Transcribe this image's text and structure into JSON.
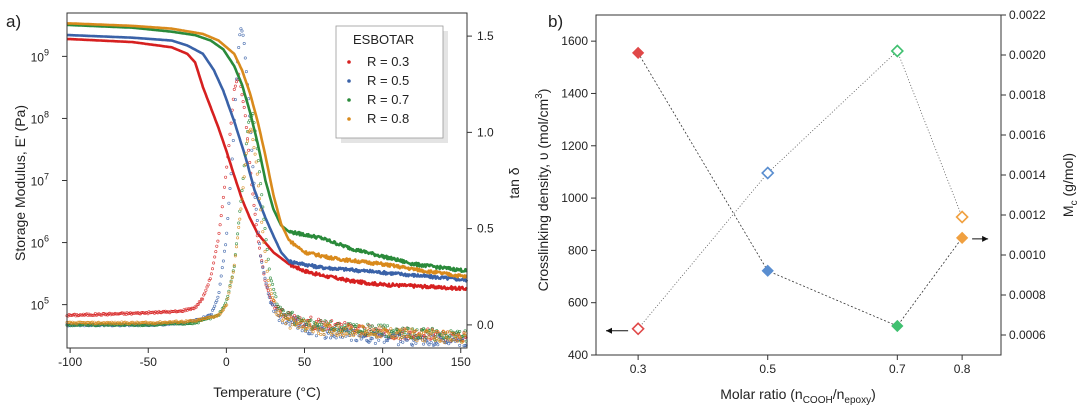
{
  "chart_data": [
    {
      "panel": "a)",
      "type": "line",
      "xlabel": "Temperature (°C)",
      "ylabel": "Storage Modulus, E' (Pa)",
      "y2label": "tan δ",
      "xlim": [
        -102,
        154
      ],
      "ylim_log": [
        20000,
        5000000000
      ],
      "y2lim": [
        -0.12,
        1.62
      ],
      "xscale": "linear",
      "yscale": "log",
      "x_ticks": [
        "-100",
        "-50",
        "0",
        "50",
        "100",
        "150"
      ],
      "y_ticks": [
        {
          "base": "10",
          "exp": "5"
        },
        {
          "base": "10",
          "exp": "6"
        },
        {
          "base": "10",
          "exp": "7"
        },
        {
          "base": "10",
          "exp": "8"
        },
        {
          "base": "10",
          "exp": "9"
        }
      ],
      "y2_ticks": [
        "0.0",
        "0.5",
        "1.0",
        "1.5"
      ],
      "legend": {
        "title": "ESBOTAR",
        "position": "top-right"
      },
      "series": [
        {
          "name": "R = 0.3",
          "color": "#d62020",
          "modulus": [
            [
              -100,
              1900000000.0
            ],
            [
              -60,
              1700000000.0
            ],
            [
              -35,
              1400000000.0
            ],
            [
              -25,
              1100000000.0
            ],
            [
              -20,
              800000000.0
            ],
            [
              -15,
              320000000.0
            ],
            [
              -10,
              150000000.0
            ],
            [
              -5,
              70000000.0
            ],
            [
              0,
              30000000.0
            ],
            [
              5,
              12000000.0
            ],
            [
              10,
              5000000.0
            ],
            [
              15,
              2500000.0
            ],
            [
              20,
              1400000.0
            ],
            [
              30,
              700000.0
            ],
            [
              40,
              450000.0
            ],
            [
              50,
              350000.0
            ],
            [
              60,
              300000.0
            ],
            [
              80,
              240000.0
            ],
            [
              100,
              210000.0
            ],
            [
              120,
              200000.0
            ],
            [
              154,
              180000.0
            ]
          ],
          "tan_delta": [
            [
              -100,
              0.05
            ],
            [
              -60,
              0.06
            ],
            [
              -30,
              0.07
            ],
            [
              -20,
              0.09
            ],
            [
              -15,
              0.14
            ],
            [
              -10,
              0.25
            ],
            [
              -5,
              0.45
            ],
            [
              0,
              0.8
            ],
            [
              5,
              1.22
            ],
            [
              8,
              1.3
            ],
            [
              12,
              1.1
            ],
            [
              16,
              0.75
            ],
            [
              20,
              0.45
            ],
            [
              25,
              0.22
            ],
            [
              30,
              0.1
            ],
            [
              40,
              0.04
            ],
            [
              60,
              0.0
            ],
            [
              100,
              -0.04
            ],
            [
              154,
              -0.06
            ]
          ]
        },
        {
          "name": "R = 0.5",
          "color": "#3a62a8",
          "modulus": [
            [
              -100,
              2200000000.0
            ],
            [
              -60,
              2000000000.0
            ],
            [
              -35,
              1800000000.0
            ],
            [
              -25,
              1500000000.0
            ],
            [
              -15,
              1100000000.0
            ],
            [
              -8,
              600000000.0
            ],
            [
              -2,
              280000000.0
            ],
            [
              5,
              90000000.0
            ],
            [
              12,
              25000000.0
            ],
            [
              18,
              7000000.0
            ],
            [
              25,
              2500000.0
            ],
            [
              30,
              1300000.0
            ],
            [
              35,
              700000.0
            ],
            [
              40,
              500000.0
            ],
            [
              60,
              400000.0
            ],
            [
              100,
              330000.0
            ],
            [
              154,
              250000.0
            ]
          ],
          "tan_delta": [
            [
              -100,
              0.0
            ],
            [
              -50,
              0.0
            ],
            [
              -25,
              0.01
            ],
            [
              -10,
              0.05
            ],
            [
              -5,
              0.15
            ],
            [
              0,
              0.45
            ],
            [
              4,
              0.9
            ],
            [
              7,
              1.35
            ],
            [
              9,
              1.55
            ],
            [
              11,
              1.5
            ],
            [
              14,
              1.2
            ],
            [
              18,
              0.7
            ],
            [
              22,
              0.35
            ],
            [
              28,
              0.12
            ],
            [
              35,
              0.03
            ],
            [
              60,
              -0.04
            ],
            [
              100,
              -0.07
            ],
            [
              154,
              -0.09
            ]
          ]
        },
        {
          "name": "R = 0.7",
          "color": "#2a8a3a",
          "modulus": [
            [
              -100,
              3200000000.0
            ],
            [
              -60,
              2900000000.0
            ],
            [
              -35,
              2500000000.0
            ],
            [
              -20,
              2200000000.0
            ],
            [
              -10,
              1800000000.0
            ],
            [
              -2,
              1300000000.0
            ],
            [
              5,
              700000000.0
            ],
            [
              10,
              350000000.0
            ],
            [
              15,
              130000000.0
            ],
            [
              20,
              40000000.0
            ],
            [
              25,
              10000000.0
            ],
            [
              30,
              3500000.0
            ],
            [
              35,
              1900000.0
            ],
            [
              40,
              1500000.0
            ],
            [
              60,
              1200000.0
            ],
            [
              80,
              800000.0
            ],
            [
              100,
              600000.0
            ],
            [
              120,
              450000.0
            ],
            [
              154,
              350000.0
            ]
          ],
          "tan_delta": [
            [
              -100,
              0.0
            ],
            [
              -50,
              0.0
            ],
            [
              -20,
              0.01
            ],
            [
              -5,
              0.05
            ],
            [
              0,
              0.12
            ],
            [
              5,
              0.3
            ],
            [
              10,
              0.7
            ],
            [
              14,
              1.05
            ],
            [
              17,
              1.1
            ],
            [
              20,
              0.9
            ],
            [
              24,
              0.55
            ],
            [
              28,
              0.25
            ],
            [
              35,
              0.07
            ],
            [
              50,
              0.0
            ],
            [
              100,
              -0.03
            ],
            [
              154,
              -0.06
            ]
          ]
        },
        {
          "name": "R = 0.8",
          "color": "#d98a1c",
          "modulus": [
            [
              -100,
              3400000000.0
            ],
            [
              -60,
              3100000000.0
            ],
            [
              -35,
              2800000000.0
            ],
            [
              -15,
              2300000000.0
            ],
            [
              -5,
              1800000000.0
            ],
            [
              5,
              1100000000.0
            ],
            [
              10,
              600000000.0
            ],
            [
              15,
              260000000.0
            ],
            [
              20,
              90000000.0
            ],
            [
              25,
              25000000.0
            ],
            [
              30,
              6000000.0
            ],
            [
              35,
              2000000.0
            ],
            [
              40,
              1100000.0
            ],
            [
              50,
              700000.0
            ],
            [
              70,
              550000.0
            ],
            [
              100,
              450000.0
            ],
            [
              130,
              340000.0
            ],
            [
              154,
              280000.0
            ]
          ],
          "tan_delta": [
            [
              -100,
              0.01
            ],
            [
              -50,
              0.01
            ],
            [
              -20,
              0.02
            ],
            [
              -5,
              0.05
            ],
            [
              0,
              0.1
            ],
            [
              5,
              0.3
            ],
            [
              10,
              0.65
            ],
            [
              14,
              1.0
            ],
            [
              16,
              1.02
            ],
            [
              19,
              0.85
            ],
            [
              23,
              0.5
            ],
            [
              27,
              0.22
            ],
            [
              32,
              0.07
            ],
            [
              40,
              0.01
            ],
            [
              60,
              -0.02
            ],
            [
              100,
              -0.04
            ],
            [
              154,
              -0.07
            ]
          ]
        }
      ]
    },
    {
      "panel": "b)",
      "type": "scatter",
      "xlabel": {
        "main": "Molar ratio (n",
        "sub1": "COOH",
        "sep": "/n",
        "sub2": "epoxy",
        "close": ")"
      },
      "ylabel": {
        "main": "Crosslinking density, υ  (mol/cm",
        "sup": "3",
        "close": ")"
      },
      "y2label": {
        "main": "M",
        "sub": "c",
        "rest": " (g/mol)"
      },
      "xlim": [
        0.235,
        0.86
      ],
      "ylim": [
        400,
        1700
      ],
      "y2lim": [
        0.0005,
        0.0022
      ],
      "x_ticks": [
        "0.3",
        "0.5",
        "0.7",
        "0.8"
      ],
      "y_ticks": [
        "400",
        "600",
        "800",
        "1000",
        "1200",
        "1400",
        "1600"
      ],
      "y2_ticks": [
        "0.0006",
        "0.0008",
        "0.0010",
        "0.0012",
        "0.0014",
        "0.0016",
        "0.0018",
        "0.0020",
        "0.0022"
      ],
      "colors": [
        "#e04848",
        "#5a8ed0",
        "#40c070",
        "#f0a040"
      ],
      "crosslinking_density": {
        "x": [
          0.3,
          0.5,
          0.7,
          0.8
        ],
        "y": [
          1555,
          722,
          511,
          848
        ]
      },
      "Mc": {
        "x": [
          0.3,
          0.5,
          0.7,
          0.8
        ],
        "y": [
          0.000631,
          0.00141,
          0.00202,
          0.00119
        ]
      },
      "arrows": [
        {
          "series": "crosslinking_density",
          "direction": "left"
        },
        {
          "series": "Mc",
          "direction": "right"
        }
      ]
    }
  ]
}
